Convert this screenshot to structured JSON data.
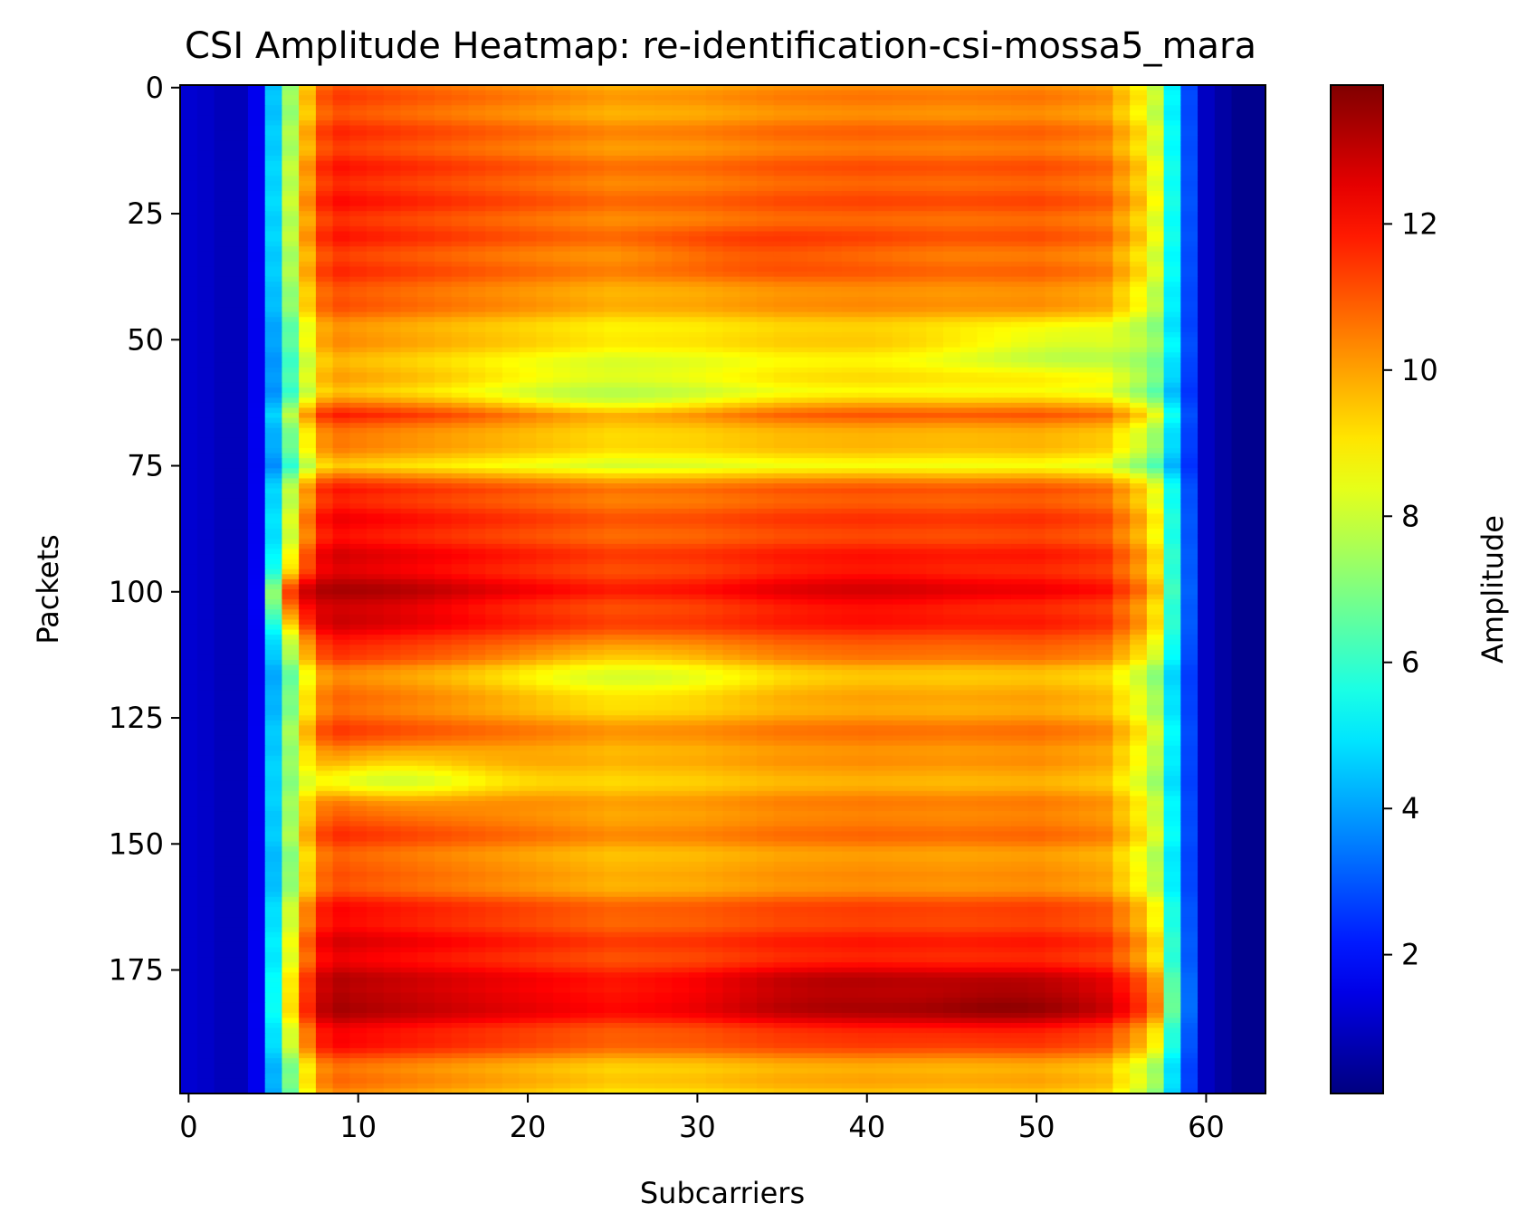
{
  "chart_data": {
    "type": "heatmap",
    "title": "CSI Amplitude Heatmap: re-identification-csi-mossa5_mara",
    "xlabel": "Subcarriers",
    "ylabel": "Packets",
    "colorbar_label": "Amplitude",
    "colormap": "jet",
    "xlim": [
      -0.5,
      63.5
    ],
    "ylim": [
      199.5,
      -0.5
    ],
    "x_ticks": [
      0,
      10,
      20,
      30,
      40,
      50,
      60
    ],
    "y_ticks": [
      0,
      25,
      50,
      75,
      100,
      125,
      150,
      175
    ],
    "colorbar_range": [
      0.1,
      13.9
    ],
    "colorbar_ticks": [
      2,
      4,
      6,
      8,
      10,
      12
    ],
    "n_subcarriers": 64,
    "n_packets": 200,
    "col_profile_subcarriers": [
      0,
      1,
      2,
      3,
      4,
      5,
      6,
      7,
      8,
      9,
      10,
      15,
      20,
      25,
      30,
      35,
      40,
      45,
      50,
      54,
      55,
      56,
      57,
      58,
      59,
      60,
      61,
      62,
      63
    ],
    "col_profile_values": [
      1.2,
      1.1,
      0.9,
      0.9,
      1.6,
      4.5,
      7.4,
      9.6,
      11.0,
      11.3,
      11.2,
      10.8,
      10.4,
      10.0,
      10.1,
      10.4,
      10.5,
      10.4,
      10.5,
      10.2,
      9.6,
      9.0,
      8.0,
      5.2,
      2.8,
      1.0,
      0.6,
      0.3,
      0.3
    ],
    "row_profile_packets": [
      0,
      10,
      20,
      30,
      40,
      50,
      55,
      60,
      65,
      70,
      75,
      80,
      90,
      100,
      110,
      115,
      120,
      125,
      130,
      135,
      140,
      145,
      150,
      155,
      160,
      165,
      170,
      175,
      180,
      185,
      190,
      195,
      199
    ],
    "row_profile_offsets": [
      -0.2,
      0.2,
      0.6,
      0.4,
      0.0,
      -1.2,
      -1.4,
      -1.6,
      0.3,
      -0.8,
      -1.6,
      0.6,
      1.0,
      1.6,
      0.8,
      -0.7,
      -0.8,
      -0.2,
      0.1,
      -0.6,
      -0.4,
      0.2,
      0.0,
      -0.5,
      0.2,
      1.0,
      1.2,
      1.4,
      2.2,
      1.6,
      0.6,
      -0.6,
      -0.9
    ],
    "hotspots": [
      {
        "packet": 181,
        "subcarrier": 48,
        "amplitude": 13.9
      },
      {
        "packet": 180,
        "subcarrier": 38,
        "amplitude": 13.5
      },
      {
        "packet": 101,
        "subcarrier": 9,
        "amplitude": 13.2
      },
      {
        "packet": 100,
        "subcarrier": 40,
        "amplitude": 12.6
      },
      {
        "packet": 32,
        "subcarrier": 34,
        "amplitude": 11.4
      },
      {
        "packet": 60,
        "subcarrier": 25,
        "amplitude": 7.8
      },
      {
        "packet": 137,
        "subcarrier": 12,
        "amplitude": 7.8
      },
      {
        "packet": 117,
        "subcarrier": 26,
        "amplitude": 8.2
      },
      {
        "packet": 52,
        "subcarrier": 52,
        "amplitude": 7.6
      }
    ]
  }
}
